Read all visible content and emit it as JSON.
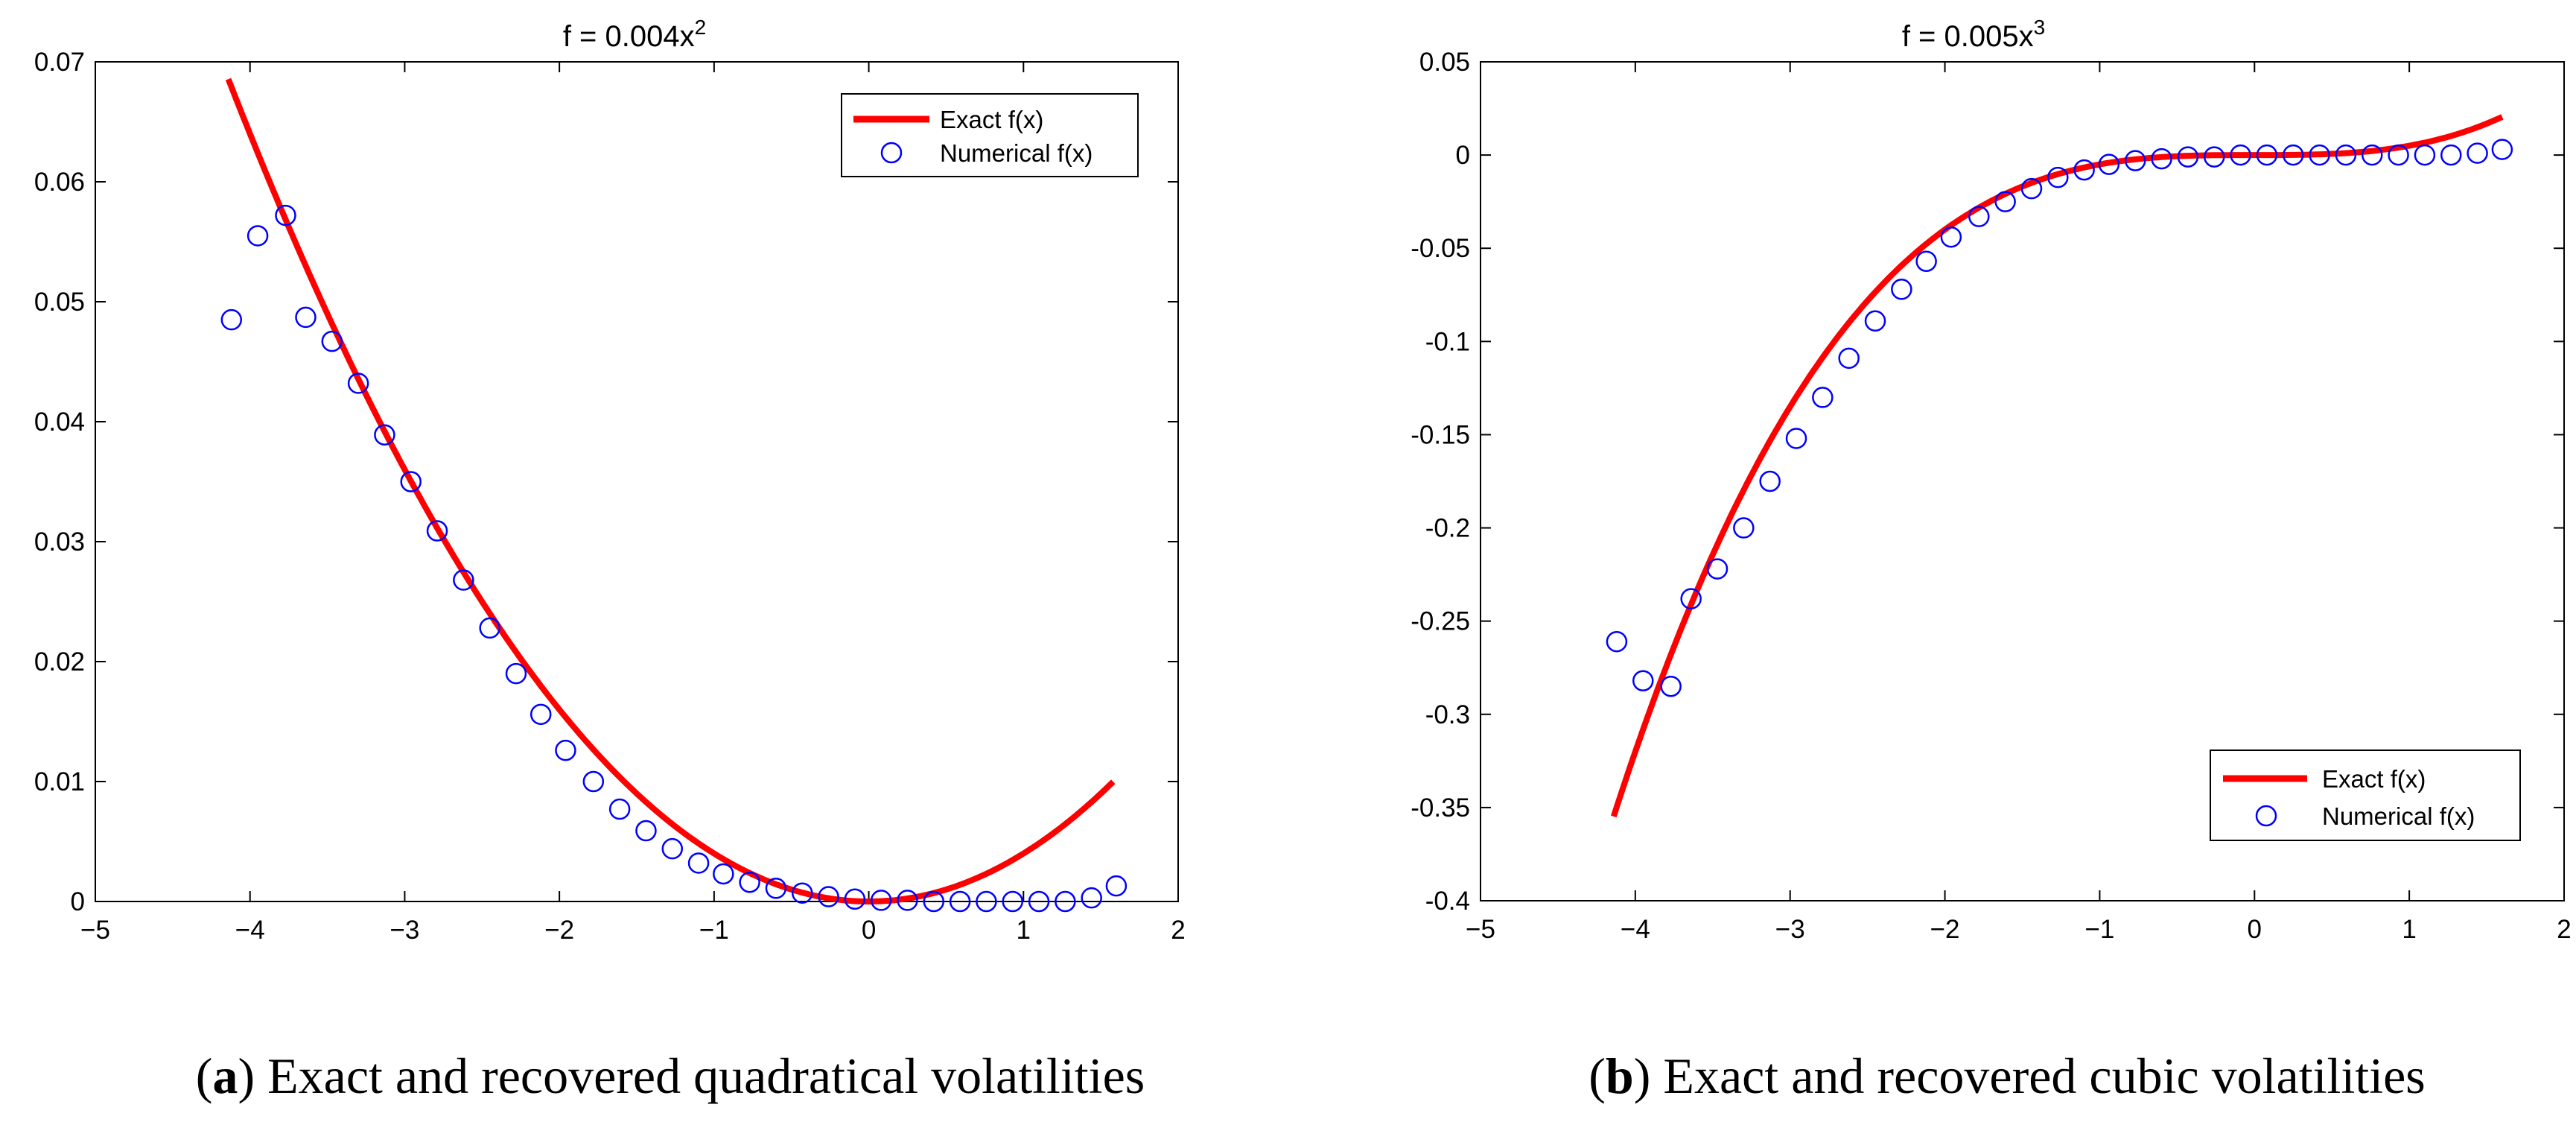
{
  "chart_data": [
    {
      "type": "line+scatter",
      "title_base": "f = 0.004x",
      "title_exponent": "2",
      "xlim": [
        -5,
        2
      ],
      "ylim": [
        0,
        0.07
      ],
      "x_ticks": [
        -5,
        -4,
        -3,
        -2,
        -1,
        0,
        1,
        2
      ],
      "y_ticks": [
        0,
        0.01,
        0.02,
        0.03,
        0.04,
        0.05,
        0.06,
        0.07
      ],
      "y_tick_labels": [
        "0",
        "0.01",
        "0.02",
        "0.03",
        "0.04",
        "0.05",
        "0.06",
        "0.07"
      ],
      "grid": false,
      "legend_position": "top-right",
      "series": [
        {
          "name": "Exact f(x)",
          "kind": "line",
          "color": "#ff0000",
          "function": "0.004*x^2",
          "x_range": [
            -4.14,
            1.58
          ],
          "x": [
            -4.14,
            -3.8,
            -3.4,
            -3.0,
            -2.6,
            -2.2,
            -1.8,
            -1.4,
            -1.0,
            -0.6,
            -0.2,
            0.0,
            0.2,
            0.6,
            1.0,
            1.3,
            1.58
          ],
          "y": [
            0.0686,
            0.0578,
            0.0462,
            0.036,
            0.027,
            0.0194,
            0.013,
            0.0078,
            0.004,
            0.0014,
            0.0002,
            0.0,
            0.0002,
            0.0014,
            0.004,
            0.0068,
            0.01
          ]
        },
        {
          "name": "Numerical f(x)",
          "kind": "scatter",
          "color": "#0000ff",
          "x": [
            -4.12,
            -3.95,
            -3.77,
            -3.64,
            -3.47,
            -3.3,
            -3.13,
            -2.96,
            -2.79,
            -2.62,
            -2.45,
            -2.28,
            -2.12,
            -1.96,
            -1.78,
            -1.61,
            -1.44,
            -1.27,
            -1.1,
            -0.94,
            -0.77,
            -0.6,
            -0.43,
            -0.26,
            -0.09,
            0.08,
            0.25,
            0.42,
            0.59,
            0.76,
            0.93,
            1.1,
            1.27,
            1.44,
            1.6
          ],
          "y": [
            0.0485,
            0.0555,
            0.0572,
            0.0487,
            0.0467,
            0.0432,
            0.0389,
            0.035,
            0.0309,
            0.0268,
            0.0228,
            0.019,
            0.0156,
            0.0126,
            0.01,
            0.0077,
            0.0059,
            0.0044,
            0.0032,
            0.0023,
            0.0016,
            0.0011,
            0.0007,
            0.0004,
            0.0002,
            0.0001,
            0.0001,
            0.0,
            0.0,
            0.0,
            0.0,
            0.0,
            0.0,
            0.0003,
            0.0013
          ]
        }
      ],
      "caption_label": "a",
      "caption_text": "Exact and recovered quadratical volatilities"
    },
    {
      "type": "line+scatter",
      "title_base": "f = 0.005x",
      "title_exponent": "3",
      "xlim": [
        -5,
        2
      ],
      "ylim": [
        -0.4,
        0.05
      ],
      "x_ticks": [
        -5,
        -4,
        -3,
        -2,
        -1,
        0,
        1,
        2
      ],
      "y_ticks": [
        -0.4,
        -0.35,
        -0.3,
        -0.25,
        -0.2,
        -0.15,
        -0.1,
        -0.05,
        0,
        0.05
      ],
      "y_tick_labels": [
        "-0.4",
        "-0.35",
        "-0.3",
        "-0.25",
        "-0.2",
        "-0.15",
        "-0.1",
        "-0.05",
        "0",
        "0.05"
      ],
      "grid": false,
      "legend_position": "bottom-right",
      "series": [
        {
          "name": "Exact f(x)",
          "kind": "line",
          "color": "#ff0000",
          "function": "0.005*x^3",
          "x_range": [
            -4.14,
            1.6
          ],
          "x": [
            -4.14,
            -3.8,
            -3.4,
            -3.0,
            -2.6,
            -2.2,
            -1.8,
            -1.4,
            -1.0,
            -0.6,
            -0.2,
            0.2,
            0.6,
            1.0,
            1.3,
            1.6
          ],
          "y": [
            -0.3548,
            -0.2744,
            -0.1965,
            -0.135,
            -0.0879,
            -0.0532,
            -0.0292,
            -0.0137,
            -0.005,
            -0.0011,
            0.0,
            0.0,
            0.0011,
            0.005,
            0.011,
            0.0205
          ]
        },
        {
          "name": "Numerical f(x)",
          "kind": "scatter",
          "color": "#0000ff",
          "x": [
            -4.12,
            -3.95,
            -3.77,
            -3.64,
            -3.47,
            -3.3,
            -3.13,
            -2.96,
            -2.79,
            -2.62,
            -2.45,
            -2.28,
            -2.12,
            -1.96,
            -1.78,
            -1.61,
            -1.44,
            -1.27,
            -1.1,
            -0.94,
            -0.77,
            -0.6,
            -0.43,
            -0.26,
            -0.09,
            0.08,
            0.25,
            0.42,
            0.59,
            0.76,
            0.93,
            1.1,
            1.27,
            1.44,
            1.6
          ],
          "y": [
            -0.261,
            -0.282,
            -0.285,
            -0.238,
            -0.222,
            -0.2,
            -0.175,
            -0.152,
            -0.13,
            -0.109,
            -0.089,
            -0.072,
            -0.057,
            -0.044,
            -0.033,
            -0.025,
            -0.018,
            -0.012,
            -0.008,
            -0.005,
            -0.003,
            -0.002,
            -0.001,
            -0.001,
            0.0,
            0.0,
            0.0,
            0.0,
            0.0,
            0.0,
            0.0,
            0.0,
            0.0,
            0.001,
            0.003
          ]
        }
      ],
      "caption_label": "b",
      "caption_text": "Exact and recovered cubic volatilities"
    }
  ]
}
